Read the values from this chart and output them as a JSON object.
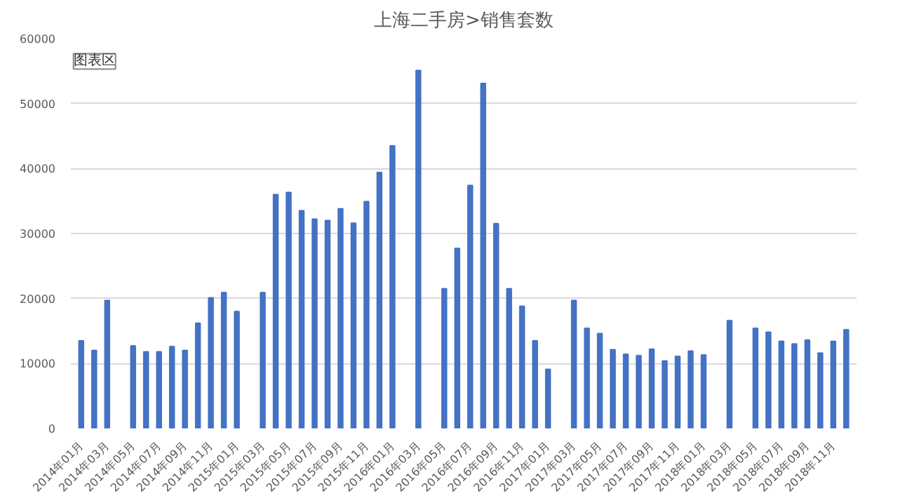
{
  "chart_data": {
    "type": "bar",
    "title": "上海二手房>销售套数",
    "categories": [
      "2014年01月",
      null,
      "2014年03月",
      null,
      "2014年05月",
      null,
      "2014年07月",
      null,
      "2014年09月",
      null,
      "2014年11月",
      null,
      "2015年01月",
      null,
      "2015年03月",
      null,
      "2015年05月",
      null,
      "2015年07月",
      null,
      "2015年09月",
      null,
      "2015年11月",
      null,
      "2016年01月",
      null,
      "2016年03月",
      null,
      "2016年05月",
      null,
      "2016年07月",
      null,
      "2016年09月",
      null,
      "2016年11月",
      null,
      "2017年01月",
      null,
      "2017年03月",
      null,
      "2017年05月",
      null,
      "2017年07月",
      null,
      "2017年09月",
      null,
      "2017年11月",
      null,
      "2018年01月",
      null,
      "2018年03月",
      null,
      "2018年05月",
      null,
      "2018年07月",
      null,
      "2018年09月",
      null,
      "2018年11月",
      null
    ],
    "values": [
      13500,
      12000,
      19700,
      null,
      12700,
      11800,
      11800,
      12600,
      12000,
      16200,
      20100,
      20900,
      18000,
      null,
      20900,
      36000,
      36300,
      33500,
      32200,
      32000,
      33800,
      31600,
      34900,
      39400,
      43500,
      null,
      55100,
      null,
      21500,
      27700,
      37400,
      53100,
      31500,
      21500,
      18800,
      13500,
      9100,
      null,
      19700,
      15400,
      14600,
      12100,
      11400,
      11200,
      12200,
      10400,
      11100,
      11900,
      11300,
      null,
      16600,
      null,
      15400,
      14800,
      13400,
      13000,
      13600,
      11600,
      13400,
      15200
    ],
    "color": "#4472c4",
    "ylim": [
      0,
      60000
    ],
    "yticks": [
      0,
      10000,
      20000,
      30000,
      40000,
      50000,
      60000
    ],
    "grid": "y",
    "annotations": [
      "图表区"
    ]
  }
}
